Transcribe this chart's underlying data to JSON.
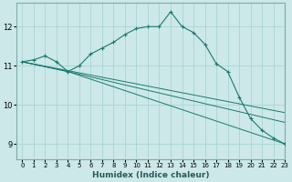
{
  "xlabel": "Humidex (Indice chaleur)",
  "background_color": "#cce8e8",
  "grid_color": "#aad4d4",
  "line_color": "#1a7a6e",
  "xlim": [
    -0.5,
    23
  ],
  "ylim": [
    8.6,
    12.6
  ],
  "yticks": [
    9,
    10,
    11,
    12
  ],
  "xticks": [
    0,
    1,
    2,
    3,
    4,
    5,
    6,
    7,
    8,
    9,
    10,
    11,
    12,
    13,
    14,
    15,
    16,
    17,
    18,
    19,
    20,
    21,
    22,
    23
  ],
  "curve_x": [
    0,
    1,
    2,
    3,
    4,
    5,
    6,
    7,
    8,
    9,
    10,
    11,
    12,
    13,
    14,
    15,
    16,
    17,
    18,
    19,
    20,
    21,
    22,
    23
  ],
  "curve_y": [
    11.1,
    11.15,
    11.25,
    11.1,
    10.85,
    11.0,
    11.3,
    11.45,
    11.6,
    11.8,
    11.95,
    12.0,
    12.0,
    12.38,
    12.0,
    11.85,
    11.55,
    11.05,
    10.85,
    10.2,
    9.65,
    9.35,
    9.15,
    9.0
  ],
  "tri_line1_x": [
    0,
    4,
    23
  ],
  "tri_line1_y": [
    11.1,
    10.85,
    9.0
  ],
  "tri_line2_x": [
    0,
    4,
    23
  ],
  "tri_line2_y": [
    11.1,
    10.85,
    9.55
  ],
  "tri_line3_x": [
    0,
    23
  ],
  "tri_line3_y": [
    11.1,
    9.8
  ]
}
